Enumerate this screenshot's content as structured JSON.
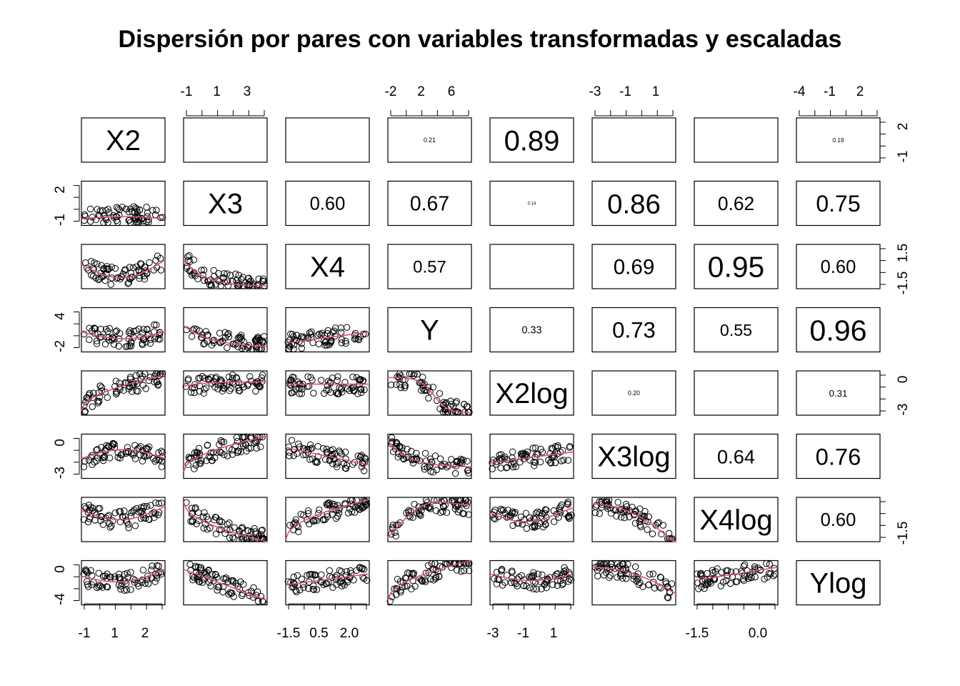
{
  "chart_data": {
    "type": "scatter",
    "title": "Dispersión por pares con variables transformadas y escaladas",
    "variables": [
      "X2",
      "X3",
      "X4",
      "Y",
      "X2log",
      "X3log",
      "X4log",
      "Ylog"
    ],
    "correlations": [
      {
        "row": 0,
        "col": 1,
        "text": "",
        "cex": 0.06
      },
      {
        "row": 0,
        "col": 2,
        "text": "",
        "cex": 0.06
      },
      {
        "row": 0,
        "col": 3,
        "text": "0.21",
        "cex": 0.22
      },
      {
        "row": 0,
        "col": 4,
        "text": "0.89",
        "cex": 1.0
      },
      {
        "row": 0,
        "col": 5,
        "text": "",
        "cex": 0.06
      },
      {
        "row": 0,
        "col": 6,
        "text": "",
        "cex": 0.06
      },
      {
        "row": 0,
        "col": 7,
        "text": "0.19",
        "cex": 0.21
      },
      {
        "row": 1,
        "col": 2,
        "text": "0.60",
        "cex": 0.64
      },
      {
        "row": 1,
        "col": 3,
        "text": "0.67",
        "cex": 0.71
      },
      {
        "row": 1,
        "col": 4,
        "text": "0.14",
        "cex": 0.15
      },
      {
        "row": 1,
        "col": 5,
        "text": "0.86",
        "cex": 0.96
      },
      {
        "row": 1,
        "col": 6,
        "text": "0.62",
        "cex": 0.66
      },
      {
        "row": 1,
        "col": 7,
        "text": "0.75",
        "cex": 0.8
      },
      {
        "row": 2,
        "col": 3,
        "text": "0.57",
        "cex": 0.6
      },
      {
        "row": 2,
        "col": 4,
        "text": "",
        "cex": 0.06
      },
      {
        "row": 2,
        "col": 5,
        "text": "0.69",
        "cex": 0.74
      },
      {
        "row": 2,
        "col": 6,
        "text": "0.95",
        "cex": 1.02
      },
      {
        "row": 2,
        "col": 7,
        "text": "0.60",
        "cex": 0.64
      },
      {
        "row": 3,
        "col": 4,
        "text": "0.33",
        "cex": 0.36
      },
      {
        "row": 3,
        "col": 5,
        "text": "0.73",
        "cex": 0.78
      },
      {
        "row": 3,
        "col": 6,
        "text": "0.55",
        "cex": 0.58
      },
      {
        "row": 3,
        "col": 7,
        "text": "0.96",
        "cex": 1.03
      },
      {
        "row": 4,
        "col": 5,
        "text": "0.20",
        "cex": 0.22
      },
      {
        "row": 4,
        "col": 6,
        "text": "",
        "cex": 0.06
      },
      {
        "row": 4,
        "col": 7,
        "text": "0.31",
        "cex": 0.33
      },
      {
        "row": 5,
        "col": 6,
        "text": "0.64",
        "cex": 0.68
      },
      {
        "row": 5,
        "col": 7,
        "text": "0.76",
        "cex": 0.82
      },
      {
        "row": 6,
        "col": 7,
        "text": "0.60",
        "cex": 0.64
      }
    ],
    "axes": {
      "top": [
        {
          "col": 1,
          "labels": [
            "-1",
            "1",
            "3"
          ]
        },
        {
          "col": 3,
          "labels": [
            "-2",
            "2",
            "6"
          ]
        },
        {
          "col": 5,
          "labels": [
            "-3",
            "-1",
            "1"
          ]
        },
        {
          "col": 7,
          "labels": [
            "-4",
            "-1",
            "2"
          ]
        }
      ],
      "bottom": [
        {
          "col": 0,
          "labels": [
            "-1",
            "1",
            "2"
          ]
        },
        {
          "col": 2,
          "labels": [
            "-1.5",
            "0.5",
            "2.0"
          ]
        },
        {
          "col": 4,
          "labels": [
            "-3",
            "-1",
            "1"
          ]
        },
        {
          "col": 6,
          "labels": [
            "-1.5",
            "0.0"
          ]
        }
      ],
      "left": [
        {
          "row": 1,
          "labels": [
            "-1",
            "2"
          ]
        },
        {
          "row": 3,
          "labels": [
            "-2",
            "4"
          ]
        },
        {
          "row": 5,
          "labels": [
            "-3",
            "0"
          ]
        },
        {
          "row": 7,
          "labels": [
            "-4",
            "0"
          ]
        }
      ],
      "right": [
        {
          "row": 0,
          "labels": [
            "-1",
            "2"
          ]
        },
        {
          "row": 2,
          "labels": [
            "-1.5",
            "1.5"
          ]
        },
        {
          "row": 4,
          "labels": [
            "-3",
            "0"
          ]
        },
        {
          "row": 6,
          "labels": [
            "-1.5"
          ]
        }
      ]
    },
    "point_color": "#000000",
    "smooth_color": "#DF536B"
  }
}
